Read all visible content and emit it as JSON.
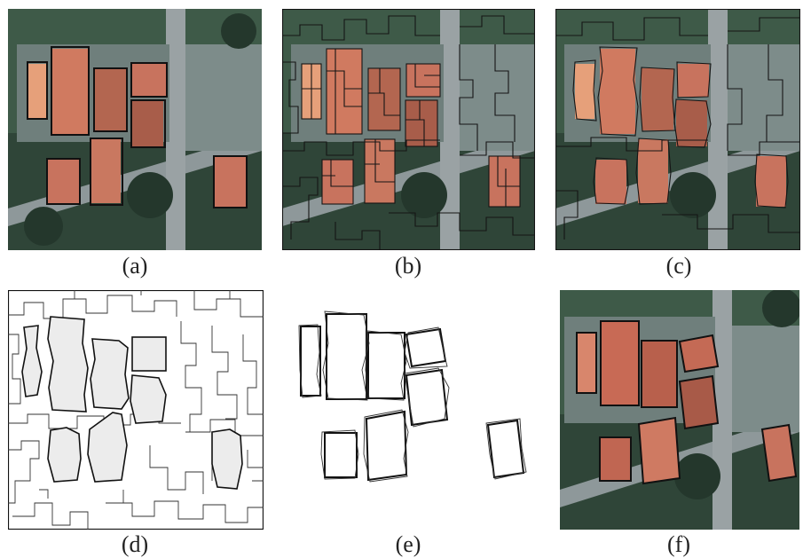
{
  "captions": [
    "(a)",
    "(b)",
    "(c)",
    "(d)",
    "(e)",
    "(f)"
  ],
  "colors": {
    "background": "#ffffff",
    "vegetation": "#3e5a48",
    "vegetation_dark": "#24372c",
    "road": "#9aa2a4",
    "lot": "#6f7f7c",
    "roof": "#c8735e",
    "roof_light": "#d99478",
    "outline": "#111111",
    "segment_fill": "#ececec"
  },
  "icons": {
    "panel_a": "satellite-image-with-building-boxes",
    "panel_b": "oversegmentation-overlay",
    "panel_c": "merged-segments-overlay",
    "panel_d": "segment-boundary-map",
    "panel_e": "fitted-rectangle-outlines",
    "panel_f": "final-building-detection"
  }
}
